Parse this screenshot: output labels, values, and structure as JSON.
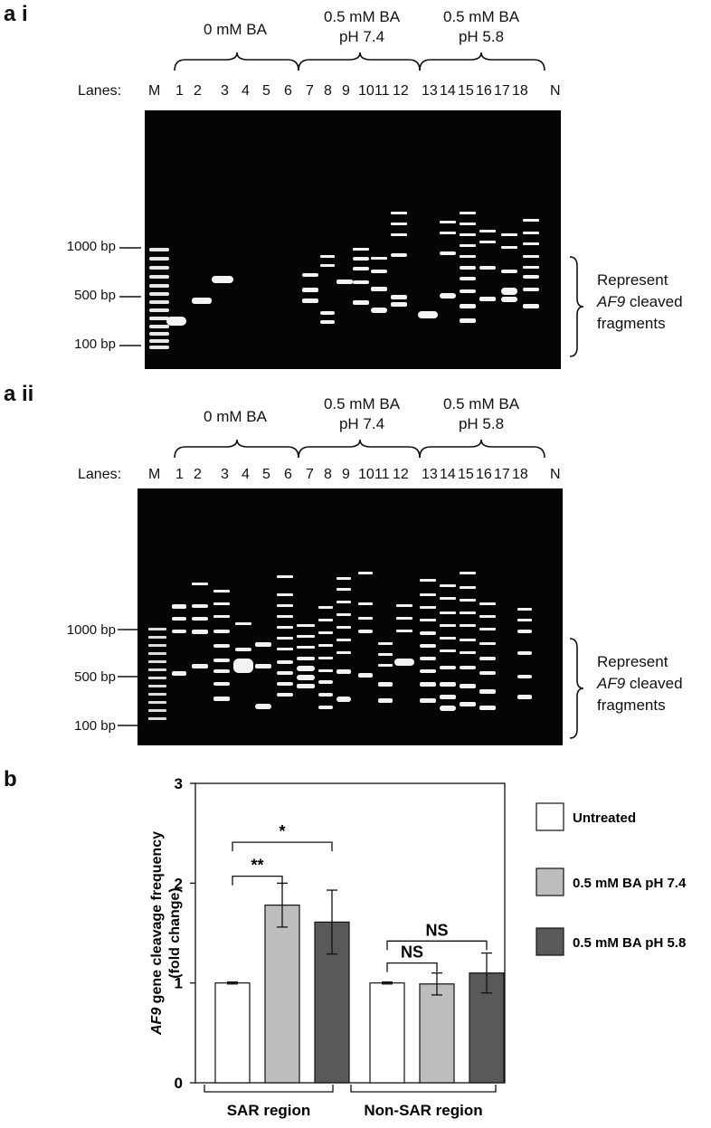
{
  "panel_ai": {
    "label": "a i",
    "conditions": [
      "0 mM BA",
      "0.5 mM BA",
      "pH 7.4",
      "0.5 mM BA",
      "pH 5.8"
    ],
    "lanes_label": "Lanes:",
    "lanes": [
      "M",
      "1",
      "2",
      "3",
      "4",
      "5",
      "6",
      "7",
      "8",
      "9",
      "10",
      "11",
      "12",
      "13",
      "14",
      "15",
      "16",
      "17",
      "18",
      "N"
    ],
    "size_markers": [
      "1000 bp",
      "500 bp",
      "100 bp"
    ],
    "represent_line1": "Represent",
    "represent_gene": "AF9",
    "represent_line2": "cleaved",
    "represent_line3": "fragments"
  },
  "panel_aii": {
    "label": "a ii",
    "conditions": [
      "0 mM BA",
      "0.5 mM BA",
      "pH 7.4",
      "0.5 mM BA",
      "pH 5.8"
    ],
    "lanes_label": "Lanes:",
    "lanes": [
      "M",
      "1",
      "2",
      "3",
      "4",
      "5",
      "6",
      "7",
      "8",
      "9",
      "10",
      "11",
      "12",
      "13",
      "14",
      "15",
      "16",
      "17",
      "18",
      "N"
    ],
    "size_markers": [
      "1000 bp",
      "500 bp",
      "100 bp"
    ],
    "represent_line1": "Represent",
    "represent_gene": "AF9",
    "represent_line2": "cleaved",
    "represent_line3": "fragments"
  },
  "panel_b": {
    "label": "b"
  },
  "chart_data": {
    "type": "bar",
    "ylabel_gene": "AF9",
    "ylabel_rest": " gene cleavage frequency",
    "ylabel_line2": "(fold change)",
    "ylim": [
      0,
      3
    ],
    "yticks": [
      "0",
      "1",
      "2",
      "3"
    ],
    "groups": [
      "SAR region",
      "Non-SAR region"
    ],
    "series": [
      {
        "name": "Untreated",
        "color": "#ffffff",
        "values": [
          1.0,
          1.0
        ],
        "errors": [
          0.01,
          0.01
        ]
      },
      {
        "name": "0.5 mM BA pH 7.4",
        "color": "#bdbdbd",
        "values": [
          1.78,
          0.99
        ],
        "errors": [
          0.22,
          0.11
        ]
      },
      {
        "name": "0.5 mM BA pH 5.8",
        "color": "#595959",
        "values": [
          1.61,
          1.1
        ],
        "errors": [
          0.32,
          0.2
        ]
      }
    ],
    "significance": [
      {
        "group": 0,
        "from": 0,
        "to": 1,
        "label": "**",
        "y": 2.07
      },
      {
        "group": 0,
        "from": 0,
        "to": 2,
        "label": "*",
        "y": 2.41
      },
      {
        "group": 1,
        "from": 0,
        "to": 1,
        "label": "NS",
        "y": 1.2
      },
      {
        "group": 1,
        "from": 0,
        "to": 2,
        "label": "NS",
        "y": 1.42
      }
    ]
  }
}
